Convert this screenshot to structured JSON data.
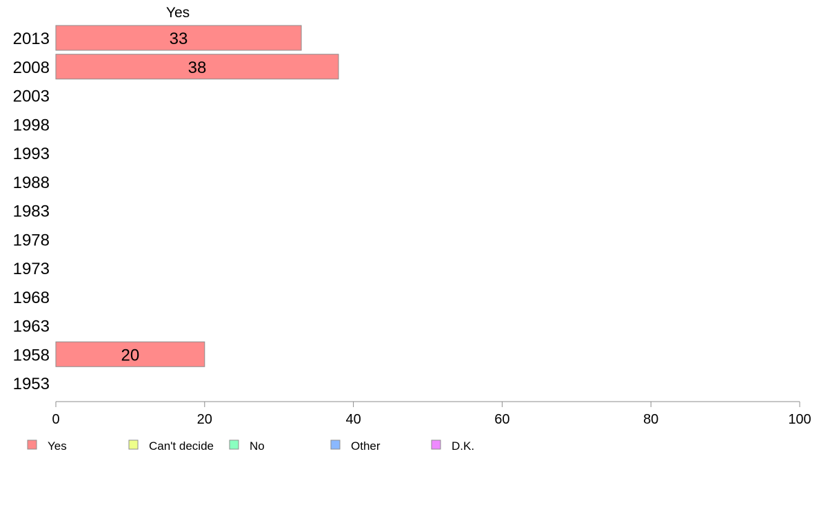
{
  "chart_data": {
    "type": "bar",
    "orientation": "horizontal",
    "panel_title": "Yes",
    "categories": [
      "2013",
      "2008",
      "2003",
      "1998",
      "1993",
      "1988",
      "1983",
      "1978",
      "1973",
      "1968",
      "1963",
      "1958",
      "1953"
    ],
    "series": [
      {
        "name": "Yes",
        "color": "#ff8a8a",
        "values": [
          33,
          38,
          null,
          null,
          null,
          null,
          null,
          null,
          null,
          null,
          null,
          20,
          null
        ]
      }
    ],
    "data_labels": [
      "33",
      "38",
      "",
      "",
      "",
      "",
      "",
      "",
      "",
      "",
      "",
      "20",
      ""
    ],
    "xlim": [
      0,
      100
    ],
    "xticks": [
      0,
      20,
      40,
      60,
      80,
      100
    ],
    "grid": false,
    "legend": {
      "placement": "bottom",
      "entries": [
        {
          "label": "Yes",
          "color": "#ff8a8a"
        },
        {
          "label": "Can't decide",
          "color": "#eeff8a"
        },
        {
          "label": "No",
          "color": "#8affc0"
        },
        {
          "label": "Other",
          "color": "#8ab8ff"
        },
        {
          "label": "D.K.",
          "color": "#ee8aff"
        }
      ]
    }
  }
}
